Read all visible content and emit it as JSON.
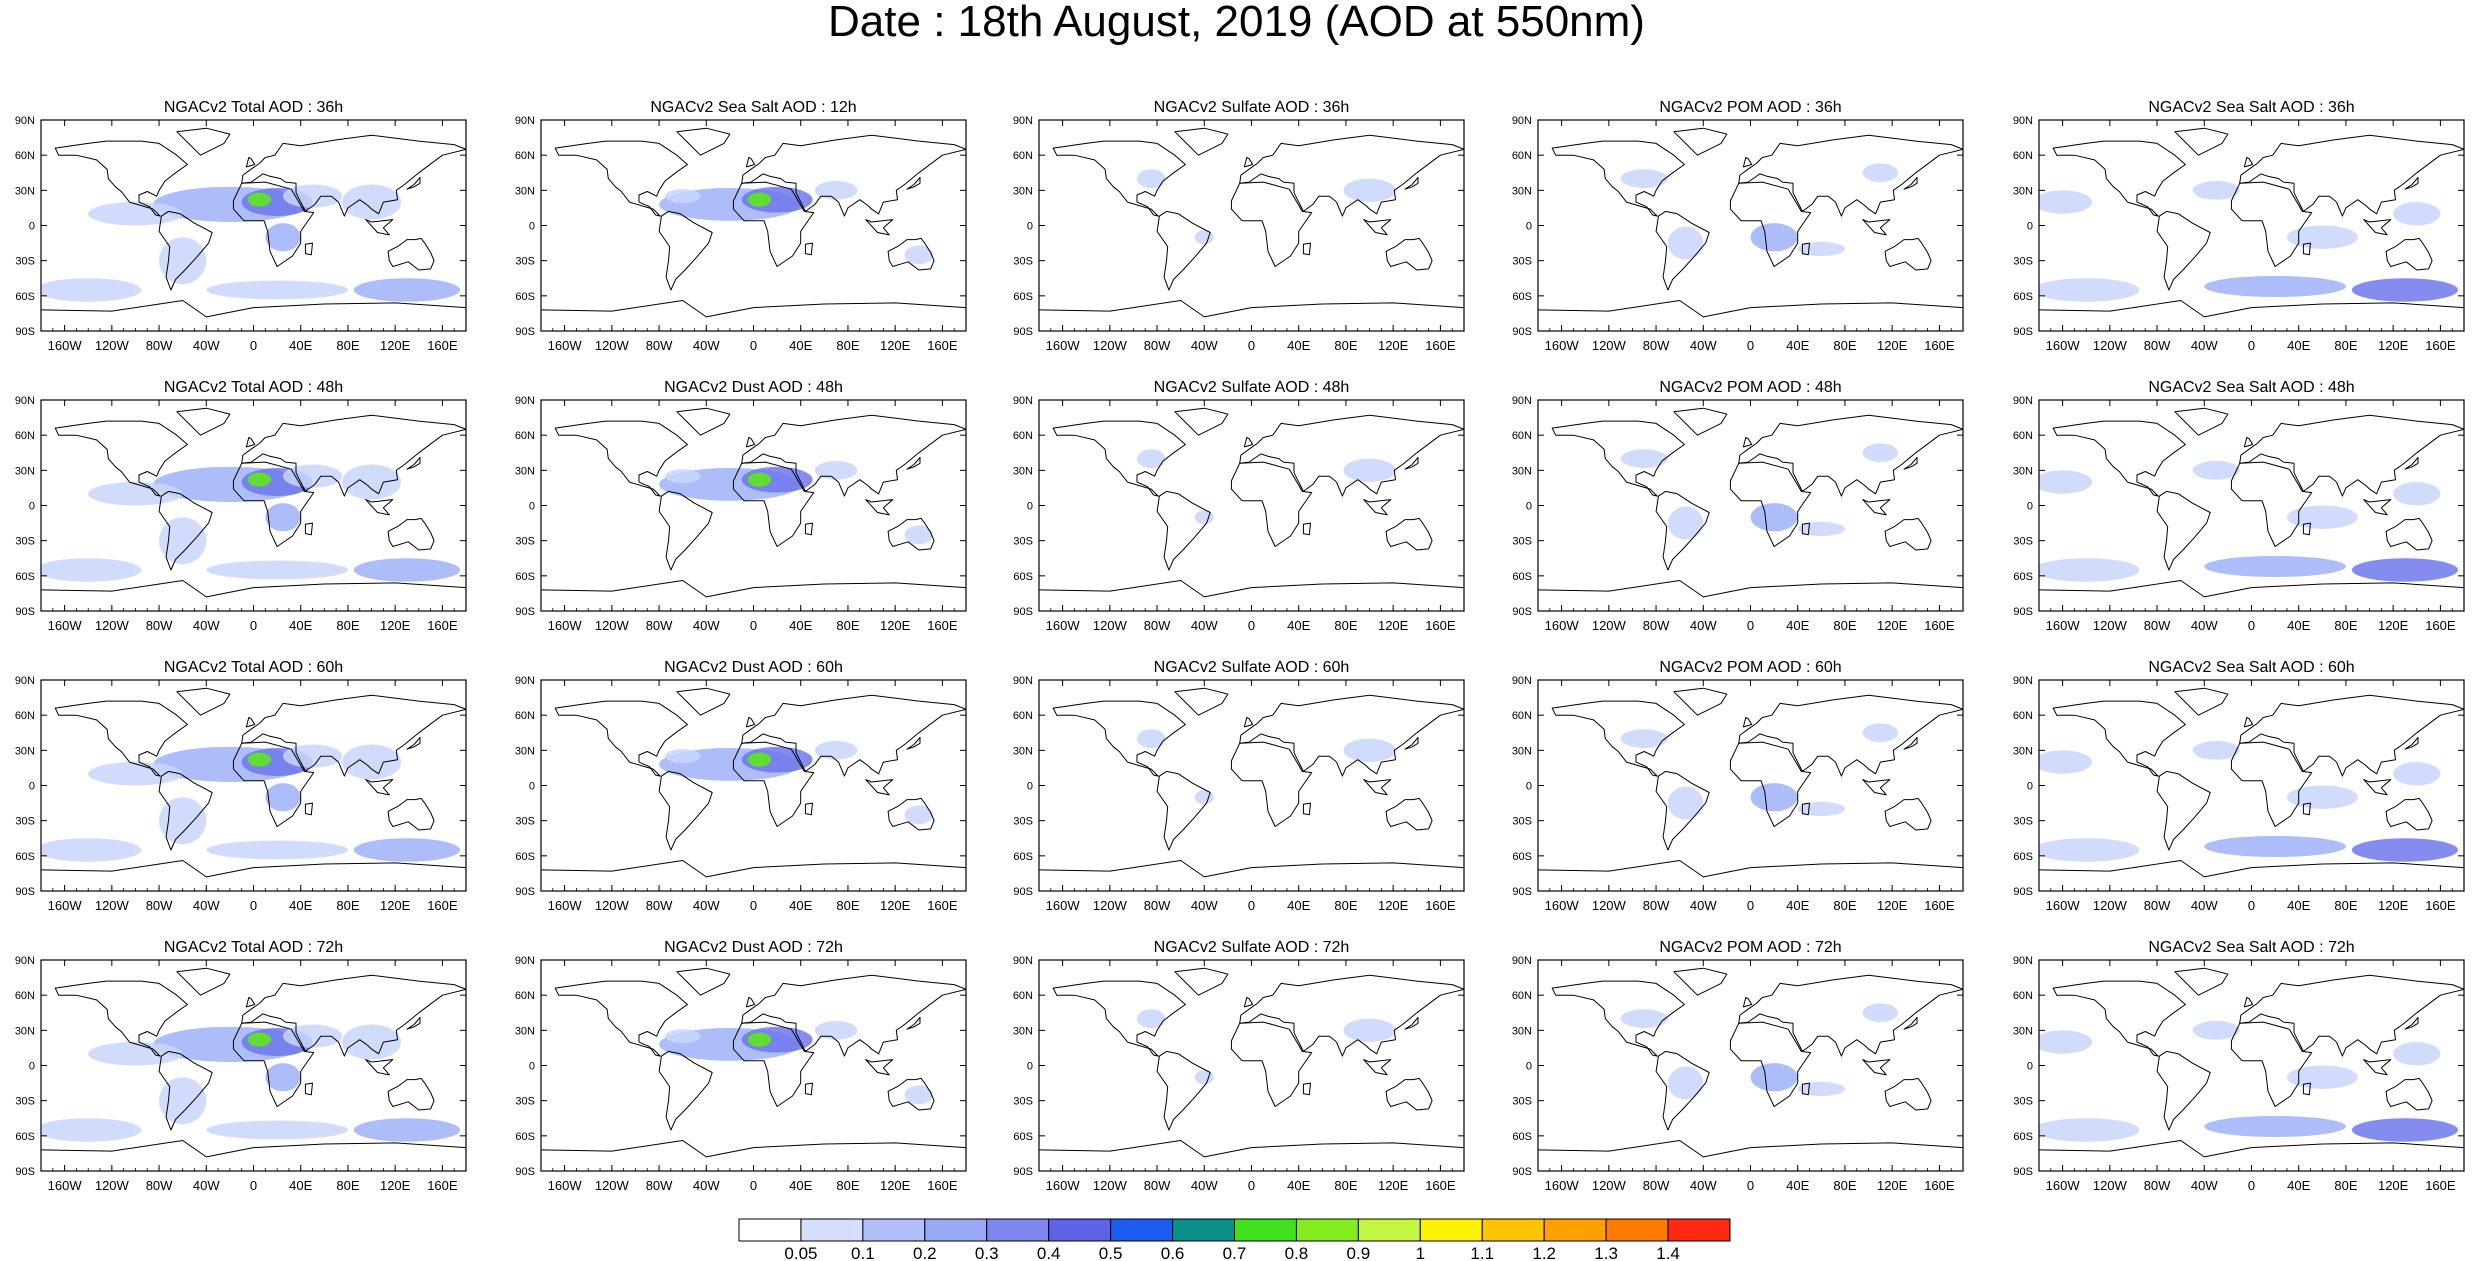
{
  "title": "Date : 18th August, 2019 (AOD at 550nm)",
  "lat_labels": [
    "90N",
    "60N",
    "30N",
    "0",
    "30S",
    "60S",
    "90S"
  ],
  "lon_labels": [
    "160W",
    "120W",
    "80W",
    "40W",
    "0",
    "40E",
    "80E",
    "120E",
    "160E"
  ],
  "rows": [
    [
      "NGACv2 Total AOD : 36h",
      "NGACv2 Sea Salt  AOD : 12h",
      "NGACv2 Sulfate AOD : 36h",
      "NGACv2 POM AOD : 36h",
      "NGACv2 Sea Salt AOD : 36h"
    ],
    [
      "NGACv2 Total AOD : 48h",
      "NGACv2 Dust AOD : 48h",
      "NGACv2 Sulfate AOD : 48h",
      "NGACv2 POM AOD : 48h",
      "NGACv2 Sea Salt AOD : 48h"
    ],
    [
      "NGACv2 Total AOD : 60h",
      "NGACv2 Dust AOD : 60h",
      "NGACv2 Sulfate AOD : 60h",
      "NGACv2 POM AOD : 60h",
      "NGACv2 Sea Salt AOD : 60h"
    ],
    [
      "NGACv2 Total AOD : 72h",
      "NGACv2 Dust AOD : 72h",
      "NGACv2 Sulfate AOD : 72h",
      "NGACv2 POM AOD : 72h",
      "NGACv2 Sea Salt  AOD : 72h"
    ]
  ],
  "colorbar": {
    "labels": [
      "0.05",
      "0.1",
      "0.2",
      "0.3",
      "0.4",
      "0.5",
      "0.6",
      "0.7",
      "0.8",
      "0.9",
      "1",
      "1.1",
      "1.2",
      "1.3",
      "1.4"
    ],
    "colors": [
      "#ffffff",
      "#d5deff",
      "#b1c0fa",
      "#97a8f4",
      "#7d88ef",
      "#5e62e6",
      "#1c5cf0",
      "#0a8f8a",
      "#3fe01c",
      "#83ec1e",
      "#c3f542",
      "#fff200",
      "#ffc400",
      "#ffa000",
      "#ff7a00",
      "#ff2a10"
    ]
  },
  "colors": {
    "plume_light": "#c9d6fd",
    "plume_mid": "#9fb2f8",
    "plume_dark": "#6e78ec",
    "hotspot": "#5ee61c",
    "coast": "#000000"
  }
}
